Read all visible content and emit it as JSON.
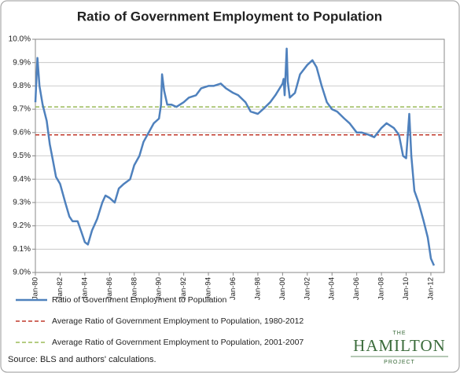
{
  "chart_data": {
    "type": "line",
    "title": "Ratio of Government Employment to Population",
    "x": [
      "1980-01",
      "1980-03",
      "1980-05",
      "1980-08",
      "1980-12",
      "1981-03",
      "1981-06",
      "1981-09",
      "1982-01",
      "1982-06",
      "1982-10",
      "1983-01",
      "1983-06",
      "1983-10",
      "1984-01",
      "1984-04",
      "1984-08",
      "1985-01",
      "1985-06",
      "1985-09",
      "1986-01",
      "1986-06",
      "1986-10",
      "1987-03",
      "1987-09",
      "1988-01",
      "1988-06",
      "1988-10",
      "1989-03",
      "1989-08",
      "1990-01",
      "1990-03",
      "1990-04",
      "1990-06",
      "1990-09",
      "1991-01",
      "1991-06",
      "1992-01",
      "1992-06",
      "1993-01",
      "1993-06",
      "1994-01",
      "1994-06",
      "1995-01",
      "1995-06",
      "1996-01",
      "1996-06",
      "1997-01",
      "1997-06",
      "1998-01",
      "1998-06",
      "1999-01",
      "1999-06",
      "2000-01",
      "2000-02",
      "2000-03",
      "2000-05",
      "2000-06",
      "2000-08",
      "2001-01",
      "2001-06",
      "2002-01",
      "2002-06",
      "2002-10",
      "2003-03",
      "2003-08",
      "2004-01",
      "2004-06",
      "2005-01",
      "2005-06",
      "2006-01",
      "2006-06",
      "2007-01",
      "2007-06",
      "2008-01",
      "2008-06",
      "2009-01",
      "2009-06",
      "2009-10",
      "2010-01",
      "2010-04",
      "2010-06",
      "2010-09",
      "2011-01",
      "2011-06",
      "2011-10",
      "2012-01",
      "2012-04"
    ],
    "series": [
      {
        "name": "Ratio of Government Employment to Population",
        "color": "#4f81bd",
        "values": [
          9.73,
          9.92,
          9.8,
          9.72,
          9.65,
          9.55,
          9.48,
          9.41,
          9.38,
          9.3,
          9.24,
          9.22,
          9.22,
          9.17,
          9.13,
          9.12,
          9.18,
          9.23,
          9.3,
          9.33,
          9.32,
          9.3,
          9.36,
          9.38,
          9.4,
          9.46,
          9.5,
          9.56,
          9.6,
          9.64,
          9.66,
          9.72,
          9.85,
          9.78,
          9.72,
          9.72,
          9.71,
          9.73,
          9.75,
          9.76,
          9.79,
          9.8,
          9.8,
          9.81,
          9.79,
          9.77,
          9.76,
          9.73,
          9.69,
          9.68,
          9.7,
          9.73,
          9.76,
          9.81,
          9.83,
          9.76,
          9.96,
          9.82,
          9.75,
          9.77,
          9.85,
          9.89,
          9.91,
          9.88,
          9.8,
          9.73,
          9.7,
          9.69,
          9.66,
          9.64,
          9.6,
          9.6,
          9.59,
          9.58,
          9.62,
          9.64,
          9.62,
          9.59,
          9.5,
          9.49,
          9.68,
          9.5,
          9.35,
          9.3,
          9.22,
          9.15,
          9.06,
          9.03
        ]
      }
    ],
    "reference_lines": [
      {
        "name": "Average Ratio of Government Employment to Population,  1980-2012",
        "color": "#c0392b",
        "value": 9.59
      },
      {
        "name": "Average Ratio of Government Employment to Population,  2001-2007",
        "color": "#9bbb59",
        "value": 9.71
      }
    ],
    "xlim": [
      "1980-01",
      "2013-02"
    ],
    "xticks": [
      {
        "value": "1980-01",
        "label": "Jan-80"
      },
      {
        "value": "1982-01",
        "label": "Jan-82"
      },
      {
        "value": "1984-01",
        "label": "Jan-84"
      },
      {
        "value": "1986-01",
        "label": "Jan-86"
      },
      {
        "value": "1988-01",
        "label": "Jan-88"
      },
      {
        "value": "1990-01",
        "label": "Jan-90"
      },
      {
        "value": "1992-01",
        "label": "Jan-92"
      },
      {
        "value": "1994-01",
        "label": "Jan-94"
      },
      {
        "value": "1996-01",
        "label": "Jan-96"
      },
      {
        "value": "1998-01",
        "label": "Jan-98"
      },
      {
        "value": "2000-01",
        "label": "Jan-00"
      },
      {
        "value": "2002-01",
        "label": "Jan-02"
      },
      {
        "value": "2004-01",
        "label": "Jan-04"
      },
      {
        "value": "2006-01",
        "label": "Jan-06"
      },
      {
        "value": "2008-01",
        "label": "Jan-08"
      },
      {
        "value": "2010-01",
        "label": "Jan-10"
      },
      {
        "value": "2012-01",
        "label": "Jan-12"
      }
    ],
    "ylim": [
      9.0,
      10.0
    ],
    "yticks": [
      {
        "value": 9.0,
        "label": "9.0%"
      },
      {
        "value": 9.1,
        "label": "9.1%"
      },
      {
        "value": 9.2,
        "label": "9.2%"
      },
      {
        "value": 9.3,
        "label": "9.3%"
      },
      {
        "value": 9.4,
        "label": "9.4%"
      },
      {
        "value": 9.5,
        "label": "9.5%"
      },
      {
        "value": 9.6,
        "label": "9.6%"
      },
      {
        "value": 9.7,
        "label": "9.7%"
      },
      {
        "value": 9.8,
        "label": "9.8%"
      },
      {
        "value": 9.9,
        "label": "9.9%"
      },
      {
        "value": 10.0,
        "label": "10.0%"
      }
    ],
    "grid": true,
    "source": "Source: BLS and authors' calculations.",
    "logo": {
      "top": "THE",
      "name": "HAMILTON",
      "bottom": "PROJECT"
    }
  }
}
